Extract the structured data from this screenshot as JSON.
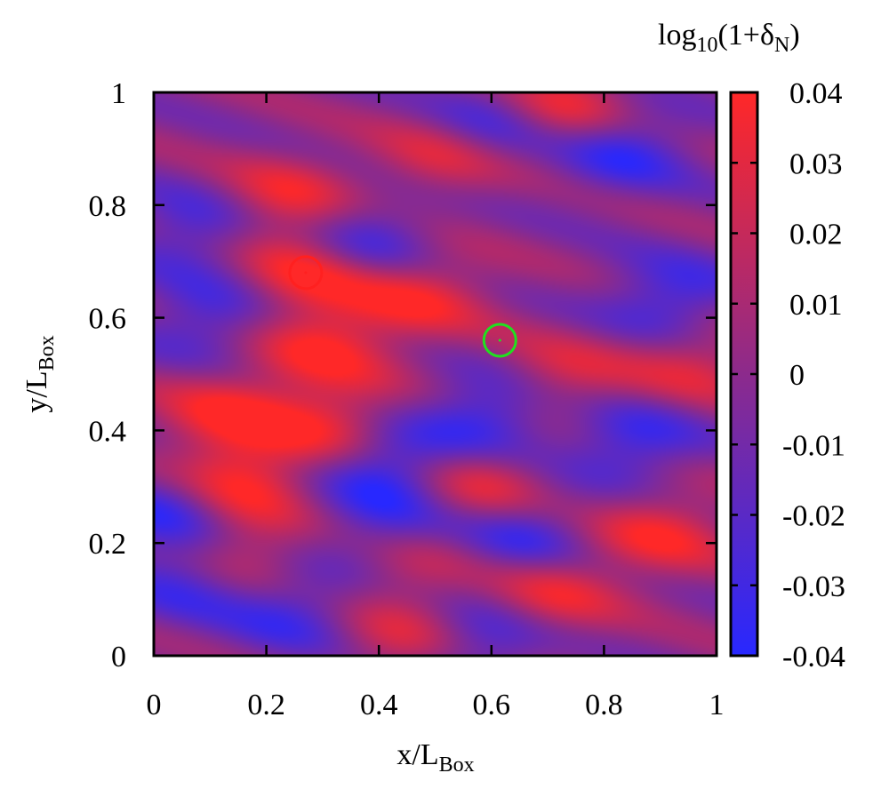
{
  "chart_data": {
    "type": "heatmap",
    "xlabel": {
      "main": "x/L",
      "sub": "Box"
    },
    "ylabel": {
      "main": "y/L",
      "sub": "Box"
    },
    "xlim": [
      0,
      1
    ],
    "ylim": [
      0,
      1
    ],
    "x_ticks": [
      "0",
      "0.2",
      "0.4",
      "0.6",
      "0.8",
      "1"
    ],
    "y_ticks": [
      "0",
      "0.2",
      "0.4",
      "0.6",
      "0.8",
      "1"
    ],
    "x_tick_values": [
      0,
      0.2,
      0.4,
      0.6,
      0.8,
      1
    ],
    "y_tick_values": [
      0,
      0.2,
      0.4,
      0.6,
      0.8,
      1
    ],
    "colorbar": {
      "title": {
        "pre": "log",
        "sub": "10",
        "mid": "(1+δ",
        "sub2": "N",
        "post": ")"
      },
      "range": [
        -0.04,
        0.04
      ],
      "ticks": [
        "0.04",
        "0.03",
        "0.02",
        "0.01",
        "0",
        "-0.01",
        "-0.02",
        "-0.03",
        "-0.04"
      ],
      "tick_values": [
        0.04,
        0.03,
        0.02,
        0.01,
        0,
        -0.01,
        -0.02,
        -0.03,
        -0.04
      ],
      "color_low": "#2828ff",
      "color_high": "#ff2828"
    },
    "field": {
      "description_level": "approximate striped overdensity/underdensity pattern, bands tilted downward to the right",
      "blobs": [
        {
          "x": 0.72,
          "y": 0.97,
          "v": 0.04
        },
        {
          "x": 0.52,
          "y": 0.89,
          "v": 0.035
        },
        {
          "x": 0.23,
          "y": 0.81,
          "v": 0.035
        },
        {
          "x": 0.27,
          "y": 0.68,
          "v": 0.04
        },
        {
          "x": 0.47,
          "y": 0.64,
          "v": 0.035
        },
        {
          "x": 0.3,
          "y": 0.55,
          "v": 0.035
        },
        {
          "x": 0.72,
          "y": 0.49,
          "v": 0.03
        },
        {
          "x": 0.13,
          "y": 0.43,
          "v": 0.035
        },
        {
          "x": 0.32,
          "y": 0.41,
          "v": 0.035
        },
        {
          "x": 0.15,
          "y": 0.31,
          "v": 0.04
        },
        {
          "x": 0.58,
          "y": 0.3,
          "v": 0.035
        },
        {
          "x": 0.9,
          "y": 0.22,
          "v": 0.035
        },
        {
          "x": 0.15,
          "y": 0.18,
          "v": 0.035
        },
        {
          "x": 0.45,
          "y": 0.17,
          "v": 0.03
        },
        {
          "x": 0.7,
          "y": 0.11,
          "v": 0.035
        },
        {
          "x": 0.45,
          "y": 0.03,
          "v": 0.03
        },
        {
          "x": 0.96,
          "y": 0.52,
          "v": 0.03
        },
        {
          "x": 0.6,
          "y": 0.94,
          "v": -0.04
        },
        {
          "x": 0.83,
          "y": 0.9,
          "v": -0.035
        },
        {
          "x": 0.08,
          "y": 0.76,
          "v": -0.03
        },
        {
          "x": 0.38,
          "y": 0.74,
          "v": -0.035
        },
        {
          "x": 0.92,
          "y": 0.63,
          "v": -0.035
        },
        {
          "x": 0.1,
          "y": 0.6,
          "v": -0.03
        },
        {
          "x": 0.6,
          "y": 0.43,
          "v": -0.04
        },
        {
          "x": 0.41,
          "y": 0.34,
          "v": -0.04
        },
        {
          "x": 0.42,
          "y": 0.22,
          "v": -0.035
        },
        {
          "x": 0.03,
          "y": 0.26,
          "v": -0.035
        },
        {
          "x": 0.07,
          "y": 0.14,
          "v": -0.035
        },
        {
          "x": 0.65,
          "y": 0.21,
          "v": -0.035
        },
        {
          "x": 0.58,
          "y": 0.03,
          "v": -0.035
        },
        {
          "x": 0.85,
          "y": 0.38,
          "v": -0.035
        },
        {
          "x": 0.25,
          "y": 0.08,
          "v": -0.03
        }
      ],
      "bands": {
        "amplitude": 0.03,
        "wavelength": 0.145,
        "slope": 0.3
      }
    },
    "markers": [
      {
        "name": "red-circle",
        "x": 0.27,
        "y": 0.68,
        "color": "#ff2020"
      },
      {
        "name": "green-circle",
        "x": 0.615,
        "y": 0.56,
        "color": "#20e020"
      }
    ]
  }
}
